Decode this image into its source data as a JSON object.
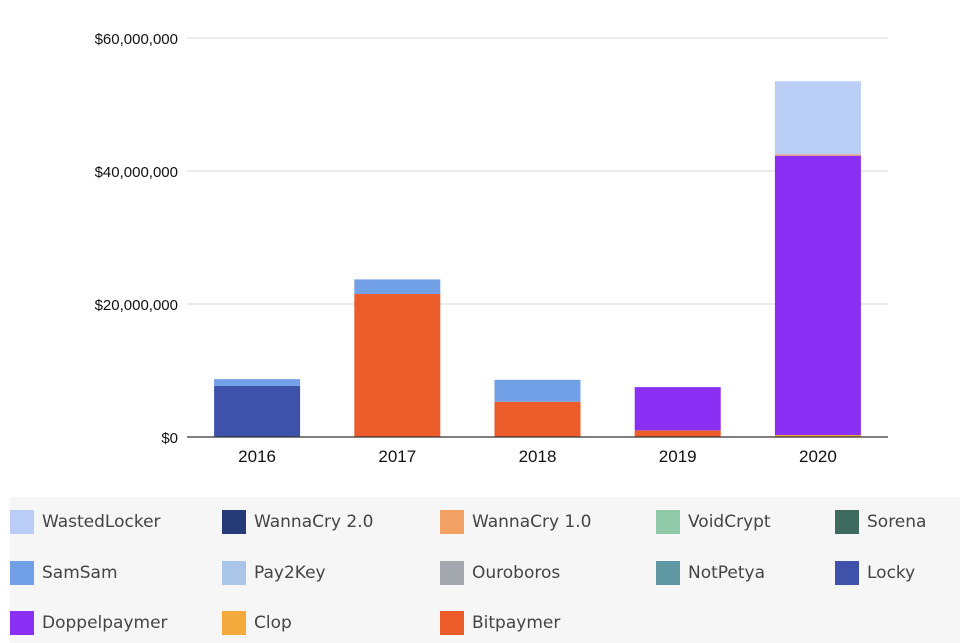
{
  "chart_data": {
    "type": "bar",
    "stacked": true,
    "categories": [
      "2016",
      "2017",
      "2018",
      "2019",
      "2020"
    ],
    "ylim": [
      0,
      60000000
    ],
    "yticks": [
      0,
      20000000,
      40000000,
      60000000
    ],
    "ytick_labels": [
      "$0",
      "$20,000,000",
      "$40,000,000",
      "$60,000,000"
    ],
    "grid": true,
    "legend_position": "bottom",
    "series": [
      {
        "name": "Bitpaymer",
        "color": "#EC5B2A",
        "values": [
          0,
          21500000,
          5300000,
          1000000,
          0
        ]
      },
      {
        "name": "Clop",
        "color": "#F3A93C",
        "values": [
          0,
          0,
          0,
          0,
          300000
        ]
      },
      {
        "name": "Doppelpaymer",
        "color": "#8B2FF5",
        "values": [
          0,
          0,
          0,
          6500000,
          42000000
        ]
      },
      {
        "name": "Locky",
        "color": "#3D52A8",
        "values": [
          7700000,
          0,
          0,
          0,
          0
        ]
      },
      {
        "name": "NotPetya",
        "color": "#5E97A1",
        "values": [
          0,
          0,
          0,
          0,
          0
        ]
      },
      {
        "name": "Ouroboros",
        "color": "#A3A8AE",
        "values": [
          0,
          0,
          0,
          0,
          0
        ]
      },
      {
        "name": "Pay2Key",
        "color": "#A9C6E8",
        "values": [
          0,
          0,
          0,
          0,
          0
        ]
      },
      {
        "name": "SamSam",
        "color": "#72A0E6",
        "values": [
          1000000,
          2200000,
          3300000,
          0,
          0
        ]
      },
      {
        "name": "Sorena",
        "color": "#3F6B5F",
        "values": [
          0,
          0,
          0,
          0,
          0
        ]
      },
      {
        "name": "VoidCrypt",
        "color": "#8FC9A7",
        "values": [
          0,
          0,
          0,
          0,
          0
        ]
      },
      {
        "name": "WannaCry 1.0",
        "color": "#F2A063",
        "values": [
          0,
          0,
          0,
          0,
          200000
        ]
      },
      {
        "name": "WannaCry 2.0",
        "color": "#273A78",
        "values": [
          0,
          0,
          0,
          0,
          0
        ]
      },
      {
        "name": "WastedLocker",
        "color": "#BACEF5",
        "values": [
          0,
          0,
          0,
          0,
          11000000
        ]
      }
    ]
  },
  "legend": {
    "items": [
      {
        "label": "WastedLocker",
        "color": "#BACEF5"
      },
      {
        "label": "WannaCry 2.0",
        "color": "#273A78"
      },
      {
        "label": "WannaCry 1.0",
        "color": "#F2A063"
      },
      {
        "label": "VoidCrypt",
        "color": "#8FC9A7"
      },
      {
        "label": "Sorena",
        "color": "#3F6B5F"
      },
      {
        "label": "SamSam",
        "color": "#72A0E6"
      },
      {
        "label": "Pay2Key",
        "color": "#A9C6E8"
      },
      {
        "label": "Ouroboros",
        "color": "#A3A8AE"
      },
      {
        "label": "NotPetya",
        "color": "#5E97A1"
      },
      {
        "label": "Locky",
        "color": "#3D52A8"
      },
      {
        "label": "Doppelpaymer",
        "color": "#8B2FF5"
      },
      {
        "label": "Clop",
        "color": "#F3A93C"
      },
      {
        "label": "Bitpaymer",
        "color": "#EC5B2A"
      }
    ]
  }
}
